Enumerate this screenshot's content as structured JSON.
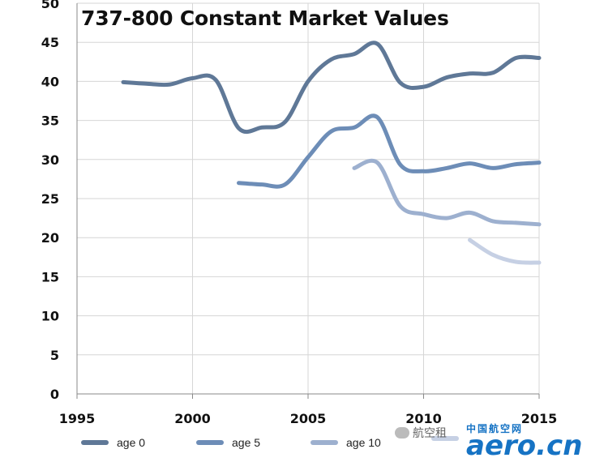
{
  "chart_data": {
    "type": "line",
    "title": "737-800 Constant Market Values",
    "xlabel": "",
    "ylabel": "",
    "xlim": [
      1995,
      2015
    ],
    "ylim": [
      0,
      50
    ],
    "x_ticks": [
      "1995",
      "2000",
      "2005",
      "2010",
      "2015"
    ],
    "y_ticks": [
      "0",
      "5",
      "10",
      "15",
      "20",
      "25",
      "30",
      "35",
      "40",
      "45",
      "50"
    ],
    "grid": true,
    "legend_position": "bottom",
    "series": [
      {
        "name": "age 0",
        "color": "#5f7897",
        "points": [
          [
            1997,
            39.9
          ],
          [
            1998,
            39.7
          ],
          [
            1999,
            39.6
          ],
          [
            2000,
            40.4
          ],
          [
            2001,
            40.2
          ],
          [
            2002,
            34.0
          ],
          [
            2003,
            34.1
          ],
          [
            2004,
            34.8
          ],
          [
            2005,
            40.0
          ],
          [
            2006,
            42.8
          ],
          [
            2007,
            43.5
          ],
          [
            2008,
            44.8
          ],
          [
            2009,
            39.8
          ],
          [
            2010,
            39.3
          ],
          [
            2011,
            40.5
          ],
          [
            2012,
            41.0
          ],
          [
            2013,
            41.1
          ],
          [
            2014,
            43.0
          ],
          [
            2015,
            43.0
          ]
        ]
      },
      {
        "name": "age 5",
        "color": "#6d8db7",
        "points": [
          [
            2002,
            27.0
          ],
          [
            2003,
            26.8
          ],
          [
            2004,
            26.8
          ],
          [
            2005,
            30.3
          ],
          [
            2006,
            33.6
          ],
          [
            2007,
            34.1
          ],
          [
            2008,
            35.4
          ],
          [
            2009,
            29.3
          ],
          [
            2010,
            28.5
          ],
          [
            2011,
            28.9
          ],
          [
            2012,
            29.5
          ],
          [
            2013,
            28.9
          ],
          [
            2014,
            29.4
          ],
          [
            2015,
            29.6
          ]
        ]
      },
      {
        "name": "age 10",
        "color": "#9db0cf",
        "points": [
          [
            2007,
            28.9
          ],
          [
            2008,
            29.6
          ],
          [
            2009,
            24.0
          ],
          [
            2010,
            23.0
          ],
          [
            2011,
            22.5
          ],
          [
            2012,
            23.2
          ],
          [
            2013,
            22.1
          ],
          [
            2014,
            21.9
          ],
          [
            2015,
            21.7
          ]
        ]
      },
      {
        "name": "",
        "color": "#c6d0e4",
        "points": [
          [
            2012,
            19.7
          ],
          [
            2013,
            17.8
          ],
          [
            2014,
            16.9
          ],
          [
            2015,
            16.8
          ]
        ]
      }
    ]
  },
  "watermark": {
    "wechat_text": "航空租",
    "site_cn": "中国航空网",
    "site_logo": "aero.cn"
  }
}
